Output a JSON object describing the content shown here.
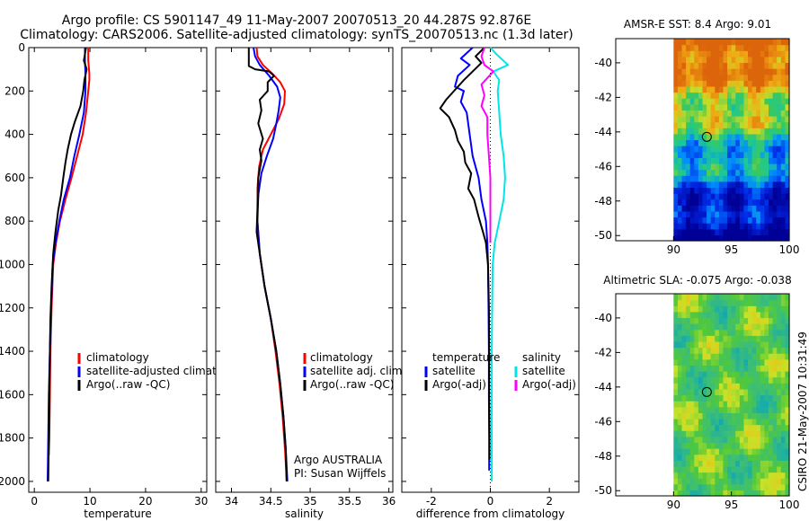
{
  "figure": {
    "title_line1": "Argo profile: CS 5901147_49 11-May-2007 20070513_20 44.287S 92.876E",
    "title_line2": "Climatology: CARS2006. Satellite-adjusted climatology: synTS_20070513.nc (1.3d later)",
    "side_label": "CSIRO 21-May-2007 10:31:49",
    "credit_line1": "Argo AUSTRALIA",
    "credit_line2": "PI: Susan Wijffels"
  },
  "colors": {
    "climatology": "#ff0000",
    "satellite": "#0000ff",
    "argo": "#000000",
    "salinity_satellite": "#00e5e5",
    "salinity_argo": "#ff00ff"
  },
  "chart_data": [
    {
      "id": "temperature",
      "type": "line",
      "xlabel": "temperature",
      "xlim": [
        -1,
        31
      ],
      "ylim": [
        2050,
        0
      ],
      "xticks": [
        0,
        10,
        20,
        30
      ],
      "yticks": [
        0,
        200,
        400,
        600,
        800,
        1000,
        1200,
        1400,
        1600,
        1800,
        2000
      ],
      "legend": [
        "climatology",
        "satellite-adjusted climatology",
        "Argo(..raw -QC)"
      ],
      "series": [
        {
          "name": "climatology",
          "color": "#ff0000",
          "points": [
            [
              9.7,
              0
            ],
            [
              9.7,
              60
            ],
            [
              9.9,
              120
            ],
            [
              9.9,
              150
            ],
            [
              9.7,
              200
            ],
            [
              9.3,
              300
            ],
            [
              8.7,
              400
            ],
            [
              7.7,
              500
            ],
            [
              6.7,
              600
            ],
            [
              5.6,
              700
            ],
            [
              4.6,
              800
            ],
            [
              3.9,
              900
            ],
            [
              3.4,
              1000
            ],
            [
              3.1,
              1200
            ],
            [
              2.9,
              1400
            ],
            [
              2.8,
              1600
            ],
            [
              2.7,
              1800
            ],
            [
              2.6,
              1880
            ]
          ]
        },
        {
          "name": "satellite-adjusted climatology",
          "color": "#0000ff",
          "points": [
            [
              9.1,
              0
            ],
            [
              9.1,
              60
            ],
            [
              9.2,
              120
            ],
            [
              9.2,
              200
            ],
            [
              8.9,
              300
            ],
            [
              8.1,
              400
            ],
            [
              7.2,
              500
            ],
            [
              6.4,
              600
            ],
            [
              5.3,
              700
            ],
            [
              4.5,
              800
            ],
            [
              3.8,
              900
            ],
            [
              3.3,
              1000
            ],
            [
              3.0,
              1200
            ],
            [
              2.8,
              1400
            ],
            [
              2.6,
              1600
            ],
            [
              2.5,
              1800
            ],
            [
              2.4,
              2000
            ]
          ]
        },
        {
          "name": "Argo(..raw -QC)",
          "color": "#000000",
          "points": [
            [
              9.3,
              0
            ],
            [
              8.9,
              60
            ],
            [
              9.4,
              100
            ],
            [
              9.0,
              150
            ],
            [
              8.8,
              200
            ],
            [
              8.3,
              270
            ],
            [
              7.3,
              340
            ],
            [
              6.6,
              400
            ],
            [
              6.0,
              470
            ],
            [
              5.6,
              530
            ],
            [
              5.2,
              600
            ],
            [
              4.8,
              680
            ],
            [
              4.3,
              750
            ],
            [
              3.8,
              850
            ],
            [
              3.4,
              950
            ],
            [
              3.1,
              1100
            ],
            [
              2.9,
              1250
            ],
            [
              2.8,
              1400
            ],
            [
              2.7,
              1600
            ],
            [
              2.6,
              1800
            ],
            [
              2.5,
              2000
            ]
          ]
        }
      ]
    },
    {
      "id": "salinity",
      "type": "line",
      "xlabel": "salinity",
      "xlim": [
        33.8,
        36.05
      ],
      "ylim": [
        2050,
        0
      ],
      "xticks": [
        34,
        34.5,
        35,
        35.5,
        36
      ],
      "legend": [
        "climatology",
        "satellite adj. clim.",
        "Argo(..raw -QC)"
      ],
      "series": [
        {
          "name": "climatology",
          "color": "#ff0000",
          "points": [
            [
              34.32,
              0
            ],
            [
              34.33,
              40
            ],
            [
              34.4,
              80
            ],
            [
              34.52,
              120
            ],
            [
              34.62,
              160
            ],
            [
              34.68,
              200
            ],
            [
              34.67,
              260
            ],
            [
              34.6,
              330
            ],
            [
              34.5,
              400
            ],
            [
              34.4,
              470
            ],
            [
              34.35,
              550
            ],
            [
              34.33,
              650
            ],
            [
              34.33,
              800
            ],
            [
              34.36,
              950
            ],
            [
              34.42,
              1100
            ],
            [
              34.5,
              1250
            ],
            [
              34.56,
              1400
            ],
            [
              34.61,
              1550
            ],
            [
              34.65,
              1700
            ],
            [
              34.68,
              1850
            ],
            [
              34.7,
              1980
            ]
          ]
        },
        {
          "name": "satellite adj. clim.",
          "color": "#0000ff",
          "points": [
            [
              34.28,
              0
            ],
            [
              34.3,
              40
            ],
            [
              34.36,
              80
            ],
            [
              34.48,
              130
            ],
            [
              34.58,
              180
            ],
            [
              34.62,
              230
            ],
            [
              34.6,
              290
            ],
            [
              34.57,
              350
            ],
            [
              34.53,
              420
            ],
            [
              34.45,
              500
            ],
            [
              34.38,
              580
            ],
            [
              34.34,
              680
            ],
            [
              34.33,
              800
            ],
            [
              34.36,
              950
            ],
            [
              34.42,
              1100
            ],
            [
              34.5,
              1250
            ],
            [
              34.57,
              1400
            ],
            [
              34.62,
              1550
            ],
            [
              34.66,
              1700
            ],
            [
              34.69,
              1850
            ],
            [
              34.71,
              2000
            ]
          ]
        },
        {
          "name": "Argo(..raw -QC)",
          "color": "#000000",
          "points": [
            [
              34.22,
              0
            ],
            [
              34.22,
              30
            ],
            [
              34.22,
              85
            ],
            [
              34.3,
              100
            ],
            [
              34.48,
              110
            ],
            [
              34.54,
              130
            ],
            [
              34.46,
              160
            ],
            [
              34.46,
              200
            ],
            [
              34.36,
              240
            ],
            [
              34.38,
              290
            ],
            [
              34.34,
              350
            ],
            [
              34.4,
              420
            ],
            [
              34.36,
              470
            ],
            [
              34.38,
              520
            ],
            [
              34.34,
              600
            ],
            [
              34.34,
              680
            ],
            [
              34.33,
              750
            ],
            [
              34.32,
              850
            ],
            [
              34.36,
              950
            ],
            [
              34.42,
              1100
            ],
            [
              34.5,
              1250
            ],
            [
              34.57,
              1400
            ],
            [
              34.62,
              1550
            ],
            [
              34.66,
              1700
            ],
            [
              34.69,
              1850
            ],
            [
              34.7,
              2000
            ]
          ]
        }
      ]
    },
    {
      "id": "difference",
      "type": "line",
      "xlabel": "difference from climatology",
      "xlim": [
        -3,
        3
      ],
      "ylim": [
        2050,
        0
      ],
      "xticks": [
        -2,
        0,
        2
      ],
      "legend_left": [
        "temperature",
        "satellite",
        "Argo(-adj)"
      ],
      "legend_right": [
        "salinity",
        "satellite",
        "Argo(-adj)"
      ],
      "series": [
        {
          "name": "temperature satellite",
          "color": "#0000ff",
          "points": [
            [
              -0.6,
              0
            ],
            [
              -1.0,
              50
            ],
            [
              -0.7,
              80
            ],
            [
              -1.1,
              130
            ],
            [
              -1.2,
              180
            ],
            [
              -0.9,
              200
            ],
            [
              -1.0,
              250
            ],
            [
              -0.8,
              300
            ],
            [
              -0.7,
              400
            ],
            [
              -0.6,
              500
            ],
            [
              -0.4,
              600
            ],
            [
              -0.3,
              700
            ],
            [
              -0.15,
              800
            ],
            [
              -0.1,
              900
            ],
            [
              -0.08,
              1000
            ],
            [
              -0.06,
              1200
            ],
            [
              -0.05,
              1400
            ],
            [
              -0.05,
              1600
            ],
            [
              -0.04,
              1800
            ],
            [
              -0.04,
              1950
            ]
          ]
        },
        {
          "name": "temperature Argo(-adj)",
          "color": "#000000",
          "points": [
            [
              -0.2,
              0
            ],
            [
              -0.5,
              40
            ],
            [
              -0.3,
              70
            ],
            [
              -0.6,
              110
            ],
            [
              -0.9,
              150
            ],
            [
              -1.1,
              180
            ],
            [
              -1.5,
              240
            ],
            [
              -1.7,
              280
            ],
            [
              -1.4,
              320
            ],
            [
              -1.2,
              380
            ],
            [
              -1.1,
              430
            ],
            [
              -0.9,
              480
            ],
            [
              -0.85,
              530
            ],
            [
              -0.65,
              580
            ],
            [
              -0.75,
              650
            ],
            [
              -0.55,
              700
            ],
            [
              -0.4,
              780
            ],
            [
              -0.25,
              850
            ],
            [
              -0.15,
              900
            ],
            [
              -0.08,
              1000
            ],
            [
              -0.05,
              1200
            ],
            [
              -0.04,
              1400
            ],
            [
              -0.04,
              1600
            ],
            [
              -0.03,
              1800
            ],
            [
              -0.03,
              1900
            ]
          ]
        },
        {
          "name": "salinity satellite",
          "color": "#00e5e5",
          "points": [
            [
              0.0,
              0
            ],
            [
              0.2,
              30
            ],
            [
              0.6,
              80
            ],
            [
              0.1,
              110
            ],
            [
              0.3,
              150
            ],
            [
              0.25,
              200
            ],
            [
              0.3,
              300
            ],
            [
              0.35,
              400
            ],
            [
              0.45,
              500
            ],
            [
              0.5,
              600
            ],
            [
              0.45,
              700
            ],
            [
              0.3,
              800
            ],
            [
              0.15,
              900
            ],
            [
              0.08,
              1000
            ],
            [
              0.06,
              1200
            ],
            [
              0.05,
              1400
            ],
            [
              0.05,
              1600
            ],
            [
              0.05,
              1800
            ],
            [
              0.05,
              2000
            ]
          ]
        },
        {
          "name": "salinity Argo(-adj)",
          "color": "#ff00ff",
          "points": [
            [
              -0.2,
              0
            ],
            [
              -0.3,
              40
            ],
            [
              -0.2,
              80
            ],
            [
              0.1,
              110
            ],
            [
              -0.1,
              140
            ],
            [
              -0.3,
              170
            ],
            [
              -0.2,
              220
            ],
            [
              -0.3,
              270
            ],
            [
              -0.1,
              320
            ],
            [
              -0.1,
              400
            ],
            [
              -0.05,
              500
            ],
            [
              0.0,
              600
            ],
            [
              0.0,
              700
            ],
            [
              0.0,
              800
            ],
            [
              0.0,
              900
            ]
          ]
        }
      ]
    },
    {
      "id": "sst-map",
      "type": "heatmap",
      "title": "AMSR-E SST: 8.4 Argo: 9.01",
      "xlim": [
        85,
        100
      ],
      "ylim": [
        -50.3,
        -38.6
      ],
      "xticks": [
        90,
        95,
        100
      ],
      "yticks": [
        -40,
        -42,
        -44,
        -46,
        -48,
        -50
      ],
      "data_xrange": [
        90,
        100
      ],
      "marker": [
        92.876,
        -44.287
      ]
    },
    {
      "id": "sla-map",
      "type": "heatmap",
      "title": "Altimetric SLA: -0.075 Argo: -0.038",
      "xlim": [
        85,
        100
      ],
      "ylim": [
        -50.3,
        -38.6
      ],
      "xticks": [
        90,
        95,
        100
      ],
      "yticks": [
        -40,
        -42,
        -44,
        -46,
        -48,
        -50
      ],
      "data_xrange": [
        90,
        100
      ],
      "marker": [
        92.876,
        -44.287
      ]
    }
  ]
}
